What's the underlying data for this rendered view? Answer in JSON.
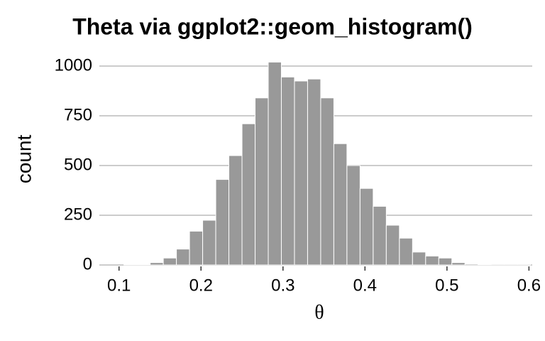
{
  "chart_data": {
    "type": "histogram",
    "title": "Theta via ggplot2::geom_histogram()",
    "x_label": "θ",
    "y_label": "count",
    "bins": [
      0.106,
      0.122,
      0.138,
      0.154,
      0.17,
      0.186,
      0.202,
      0.218,
      0.234,
      0.25,
      0.266,
      0.282,
      0.298,
      0.314,
      0.33,
      0.346,
      0.362,
      0.378,
      0.394,
      0.41,
      0.426,
      0.442,
      0.458,
      0.474,
      0.49,
      0.506,
      0.522,
      0.538,
      0.554,
      0.57,
      0.586,
      0.602
    ],
    "values": [
      2,
      3,
      12,
      35,
      80,
      170,
      225,
      430,
      550,
      710,
      840,
      1020,
      945,
      925,
      935,
      840,
      610,
      500,
      385,
      295,
      200,
      135,
      65,
      45,
      35,
      12,
      5,
      3,
      1,
      1,
      1
    ],
    "color": "#999999",
    "xlim": [
      0.076,
      0.604
    ],
    "xticks": [
      0.1,
      0.2,
      0.3,
      0.4,
      0.5,
      0.6
    ],
    "ylim": [
      0,
      1025
    ],
    "yticks": [
      0,
      250,
      500,
      750,
      1000
    ],
    "grid": true
  }
}
